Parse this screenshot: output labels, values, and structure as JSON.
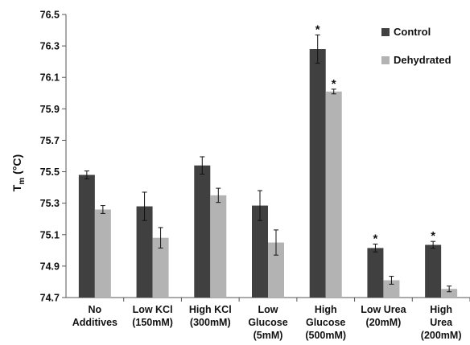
{
  "chart_data": {
    "type": "bar",
    "ylabel": {
      "main": "T",
      "sub": "m",
      "unit": " (°C)"
    },
    "ylim": [
      74.7,
      76.5
    ],
    "yticks": [
      "74.7",
      "74.9",
      "75.1",
      "75.3",
      "75.5",
      "75.7",
      "75.9",
      "76.1",
      "76.3",
      "76.5"
    ],
    "grid": false,
    "legend_position": "top-right",
    "categories": [
      [
        "No",
        "Additives"
      ],
      [
        "Low KCl",
        "(150mM)"
      ],
      [
        "High KCl",
        "(300mM)"
      ],
      [
        "Low",
        "Glucose",
        "(5mM)"
      ],
      [
        "High",
        "Glucose",
        "(500mM)"
      ],
      [
        "Low Urea",
        "(20mM)"
      ],
      [
        "High",
        "Urea",
        "(200mM)"
      ]
    ],
    "series": [
      {
        "name": "Control",
        "color": "#404040",
        "values": [
          75.48,
          75.28,
          75.54,
          75.285,
          76.28,
          75.015,
          75.035
        ],
        "errors": [
          0.025,
          0.09,
          0.055,
          0.095,
          0.09,
          0.025,
          0.022
        ],
        "significant": [
          false,
          false,
          false,
          false,
          true,
          true,
          true
        ]
      },
      {
        "name": "Dehydrated",
        "color": "#b3b3b3",
        "values": [
          75.26,
          75.08,
          75.35,
          75.05,
          76.01,
          74.81,
          74.755
        ],
        "errors": [
          0.025,
          0.065,
          0.045,
          0.08,
          0.015,
          0.025,
          0.018
        ],
        "significant": [
          false,
          false,
          false,
          false,
          true,
          false,
          false
        ]
      }
    ],
    "significance_marker": "*"
  }
}
